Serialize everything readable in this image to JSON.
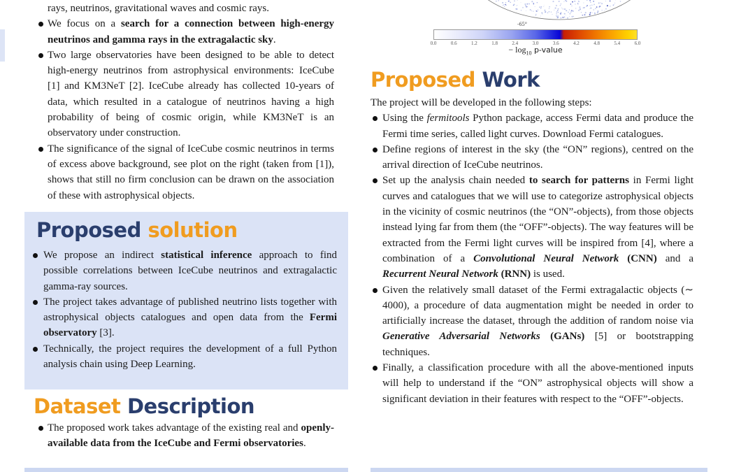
{
  "palette": {
    "navy": "#2a3e6d",
    "orange": "#f09c20",
    "box_background": "#dbe3f6",
    "body_text": "#1b1b1b"
  },
  "skymap": {
    "dec_label": "-65°",
    "colorbar": {
      "ticks": [
        "0.0",
        "0.6",
        "1.2",
        "1.8",
        "2.4",
        "3.0",
        "3.6",
        "4.2",
        "4.8",
        "5.4",
        "6.0"
      ],
      "label_minus_log": "− log",
      "label_sub": "10",
      "label_suffix": " p-value"
    }
  },
  "left_intro": {
    "items": [
      {
        "bullet": false,
        "segments": [
          {
            "t": "rays, neutrinos, gravitational waves and cosmic rays.",
            "s": "n"
          }
        ]
      },
      {
        "bullet": true,
        "segments": [
          {
            "t": "We focus on a ",
            "s": "n"
          },
          {
            "t": "search for a connection between high-energy neutrinos and gamma rays in the extragalactic sky",
            "s": "b"
          },
          {
            "t": ".",
            "s": "n"
          }
        ]
      },
      {
        "bullet": true,
        "segments": [
          {
            "t": "Two large observatories have been designed to be able to detect high-energy neutrinos from astrophysical environments: IceCube [1] and KM3NeT [2]. IceCube already has collected 10-years of data, which resulted in a catalogue of neutrinos having a high probability of being of cosmic origin, while KM3NeT is an observatory under construction.",
            "s": "n"
          }
        ]
      },
      {
        "bullet": true,
        "segments": [
          {
            "t": "The significance of the signal of IceCube cosmic neutrinos in terms of excess above background, see plot on the right (taken from [1]), shows that still no firm conclusion can be drawn on the association of these with astrophysical objects.",
            "s": "n"
          }
        ]
      }
    ]
  },
  "proposed_solution": {
    "heading": [
      {
        "t": "Proposed ",
        "c": "navy"
      },
      {
        "t": "solution",
        "c": "orange"
      }
    ],
    "items": [
      {
        "bullet": true,
        "segments": [
          {
            "t": "We propose an indirect ",
            "s": "n"
          },
          {
            "t": "statistical inference",
            "s": "b"
          },
          {
            "t": " approach to find possible correlations between IceCube neutrinos and extragalactic gamma-ray sources.",
            "s": "n"
          }
        ]
      },
      {
        "bullet": true,
        "segments": [
          {
            "t": "The project takes advantage of published neutrino lists together with astrophysical objects catalogues and open data from the ",
            "s": "n"
          },
          {
            "t": "Fermi observatory",
            "s": "b"
          },
          {
            "t": " [3].",
            "s": "n"
          }
        ]
      },
      {
        "bullet": true,
        "segments": [
          {
            "t": "Technically, the project requires the development of a full Python analysis chain using Deep Learning.",
            "s": "n"
          }
        ]
      }
    ]
  },
  "dataset_description": {
    "heading": [
      {
        "t": "Dataset ",
        "c": "orange"
      },
      {
        "t": "Description",
        "c": "navy"
      }
    ],
    "items": [
      {
        "bullet": true,
        "segments": [
          {
            "t": "The proposed work takes advantage of the existing real and ",
            "s": "n"
          },
          {
            "t": "openly-available data from the IceCube and Fermi observatories",
            "s": "b"
          },
          {
            "t": ".",
            "s": "n"
          }
        ]
      }
    ]
  },
  "proposed_work": {
    "heading": [
      {
        "t": "Proposed ",
        "c": "orange"
      },
      {
        "t": "Work",
        "c": "navy"
      }
    ],
    "intro": "The project will be developed in the following steps:",
    "items": [
      {
        "bullet": true,
        "segments": [
          {
            "t": "Using the ",
            "s": "n"
          },
          {
            "t": "fermitools",
            "s": "i"
          },
          {
            "t": " Python package, access Fermi data and produce the Fermi time series, called light curves. Download Fermi catalogues.",
            "s": "n"
          }
        ]
      },
      {
        "bullet": true,
        "segments": [
          {
            "t": "Define regions of interest in the sky (the “ON” regions), centred on the arrival direction of IceCube neutrinos.",
            "s": "n"
          }
        ]
      },
      {
        "bullet": true,
        "segments": [
          {
            "t": "Set up the analysis chain needed ",
            "s": "n"
          },
          {
            "t": "to search for patterns",
            "s": "b"
          },
          {
            "t": " in Fermi light curves and catalogues that we will use to categorize astrophysical objects in the vicinity of cosmic neutrinos (the “ON”-objects), from those objects instead lying far from them (the “OFF”-objects). The way features will be extracted from the Fermi light curves will be inspired from [4], where a combination of a ",
            "s": "n"
          },
          {
            "t": "Convolutional Neural Network",
            "s": "bi"
          },
          {
            "t": " ",
            "s": "n"
          },
          {
            "t": "(CNN)",
            "s": "b"
          },
          {
            "t": " and a ",
            "s": "n"
          },
          {
            "t": "Recurrent Neural Network",
            "s": "bi"
          },
          {
            "t": " ",
            "s": "n"
          },
          {
            "t": "(RNN)",
            "s": "b"
          },
          {
            "t": " is used.",
            "s": "n"
          }
        ]
      },
      {
        "bullet": true,
        "segments": [
          {
            "t": "Given the relatively small dataset of the Fermi extragalactic objects (∼ 4000), a procedure of data augmentation might be needed in order to artificially increase the dataset, through the addition of random noise via ",
            "s": "n"
          },
          {
            "t": "Generative Adversarial Networks",
            "s": "bi"
          },
          {
            "t": " ",
            "s": "n"
          },
          {
            "t": "(GANs)",
            "s": "b"
          },
          {
            "t": " [5] or bootstrapping techniques.",
            "s": "n"
          }
        ]
      },
      {
        "bullet": true,
        "segments": [
          {
            "t": "Finally, a classification procedure with all the above-mentioned inputs will help to understand if the “ON” astrophysical objects will show a significant deviation in their features with respect to the “OFF”-objects.",
            "s": "n"
          }
        ]
      }
    ]
  }
}
